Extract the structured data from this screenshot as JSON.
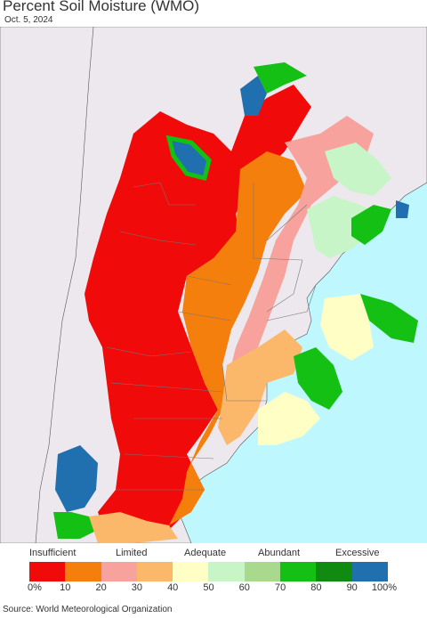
{
  "header": {
    "title": "Percent Soil Moisture (WMO)",
    "date": "Oct. 5, 2024"
  },
  "map": {
    "region": "Southern South America",
    "background_colors": {
      "ocean": "#bff7ff",
      "land_outside": "#ece8ee"
    }
  },
  "legend": {
    "categories": [
      "Insufficient",
      "Limited",
      "Adequate",
      "Abundant",
      "Excessive"
    ],
    "tick_labels": [
      "0%",
      "10",
      "20",
      "30",
      "40",
      "50",
      "60",
      "70",
      "80",
      "90",
      "100%"
    ],
    "colors": [
      "#f00a0a",
      "#f57f0c",
      "#f7a29c",
      "#fbb86b",
      "#ffffc5",
      "#c7f5c7",
      "#a8d98c",
      "#14c014",
      "#118a11",
      "#2070b0"
    ]
  },
  "footer": {
    "source": "Source: World Meteorological Organization"
  }
}
